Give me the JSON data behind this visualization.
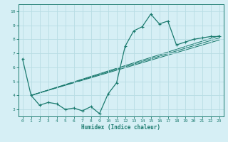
{
  "xlabel": "Humidex (Indice chaleur)",
  "bg_color": "#d6eff5",
  "grid_color": "#b8dde4",
  "line_color": "#1a7a6e",
  "xlim": [
    -0.5,
    23.5
  ],
  "ylim": [
    2.5,
    10.5
  ],
  "xticks": [
    0,
    1,
    2,
    3,
    4,
    5,
    6,
    7,
    8,
    9,
    10,
    11,
    12,
    13,
    14,
    15,
    16,
    17,
    18,
    19,
    20,
    21,
    22,
    23
  ],
  "yticks": [
    3,
    4,
    5,
    6,
    7,
    8,
    9,
    10
  ],
  "main_x": [
    0,
    1,
    2,
    3,
    4,
    5,
    6,
    7,
    8,
    9,
    10,
    11,
    12,
    13,
    14,
    15,
    16,
    17,
    18,
    19,
    20,
    21,
    22,
    23
  ],
  "main_y": [
    6.6,
    4.0,
    3.3,
    3.5,
    3.4,
    3.0,
    3.1,
    2.9,
    3.2,
    2.7,
    4.1,
    4.9,
    7.5,
    8.6,
    8.9,
    9.8,
    9.1,
    9.3,
    7.6,
    7.8,
    8.0,
    8.1,
    8.2,
    8.2
  ],
  "trend_lines": [
    {
      "x": [
        1,
        23
      ],
      "y": [
        4.0,
        8.25
      ]
    },
    {
      "x": [
        1,
        23
      ],
      "y": [
        4.0,
        8.1
      ]
    },
    {
      "x": [
        1,
        23
      ],
      "y": [
        4.0,
        7.95
      ]
    }
  ]
}
